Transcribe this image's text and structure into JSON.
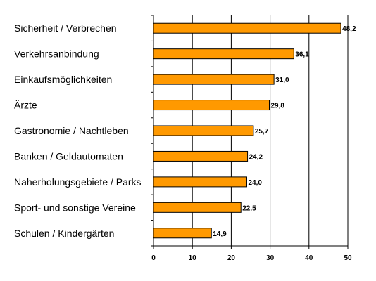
{
  "chart_data": {
    "type": "bar",
    "orientation": "horizontal",
    "categories": [
      "Sicherheit / Verbrechen",
      "Verkehrsanbindung",
      "Einkaufsmöglichkeiten",
      "Ärzte",
      "Gastronomie / Nachtleben",
      "Banken / Geldautomaten",
      "Naherholungsgebiete / Parks",
      "Sport- und sonstige Vereine",
      "Schulen / Kindergärten"
    ],
    "values": [
      48.2,
      36.1,
      31.0,
      29.8,
      25.7,
      24.2,
      24.0,
      22.5,
      14.9
    ],
    "value_labels": [
      "48,2",
      "36,1",
      "31,0",
      "29,8",
      "25,7",
      "24,2",
      "24,0",
      "22,5",
      "14,9"
    ],
    "xlim": [
      0,
      50
    ],
    "xticks": [
      0,
      10,
      20,
      30,
      40,
      50
    ],
    "xtick_labels": [
      "0",
      "10",
      "20",
      "30",
      "40",
      "50"
    ],
    "grid": "vertical",
    "bar_color": "#ff9900",
    "bar_edge_color": "#000000",
    "title": "",
    "xlabel": "",
    "ylabel": ""
  }
}
